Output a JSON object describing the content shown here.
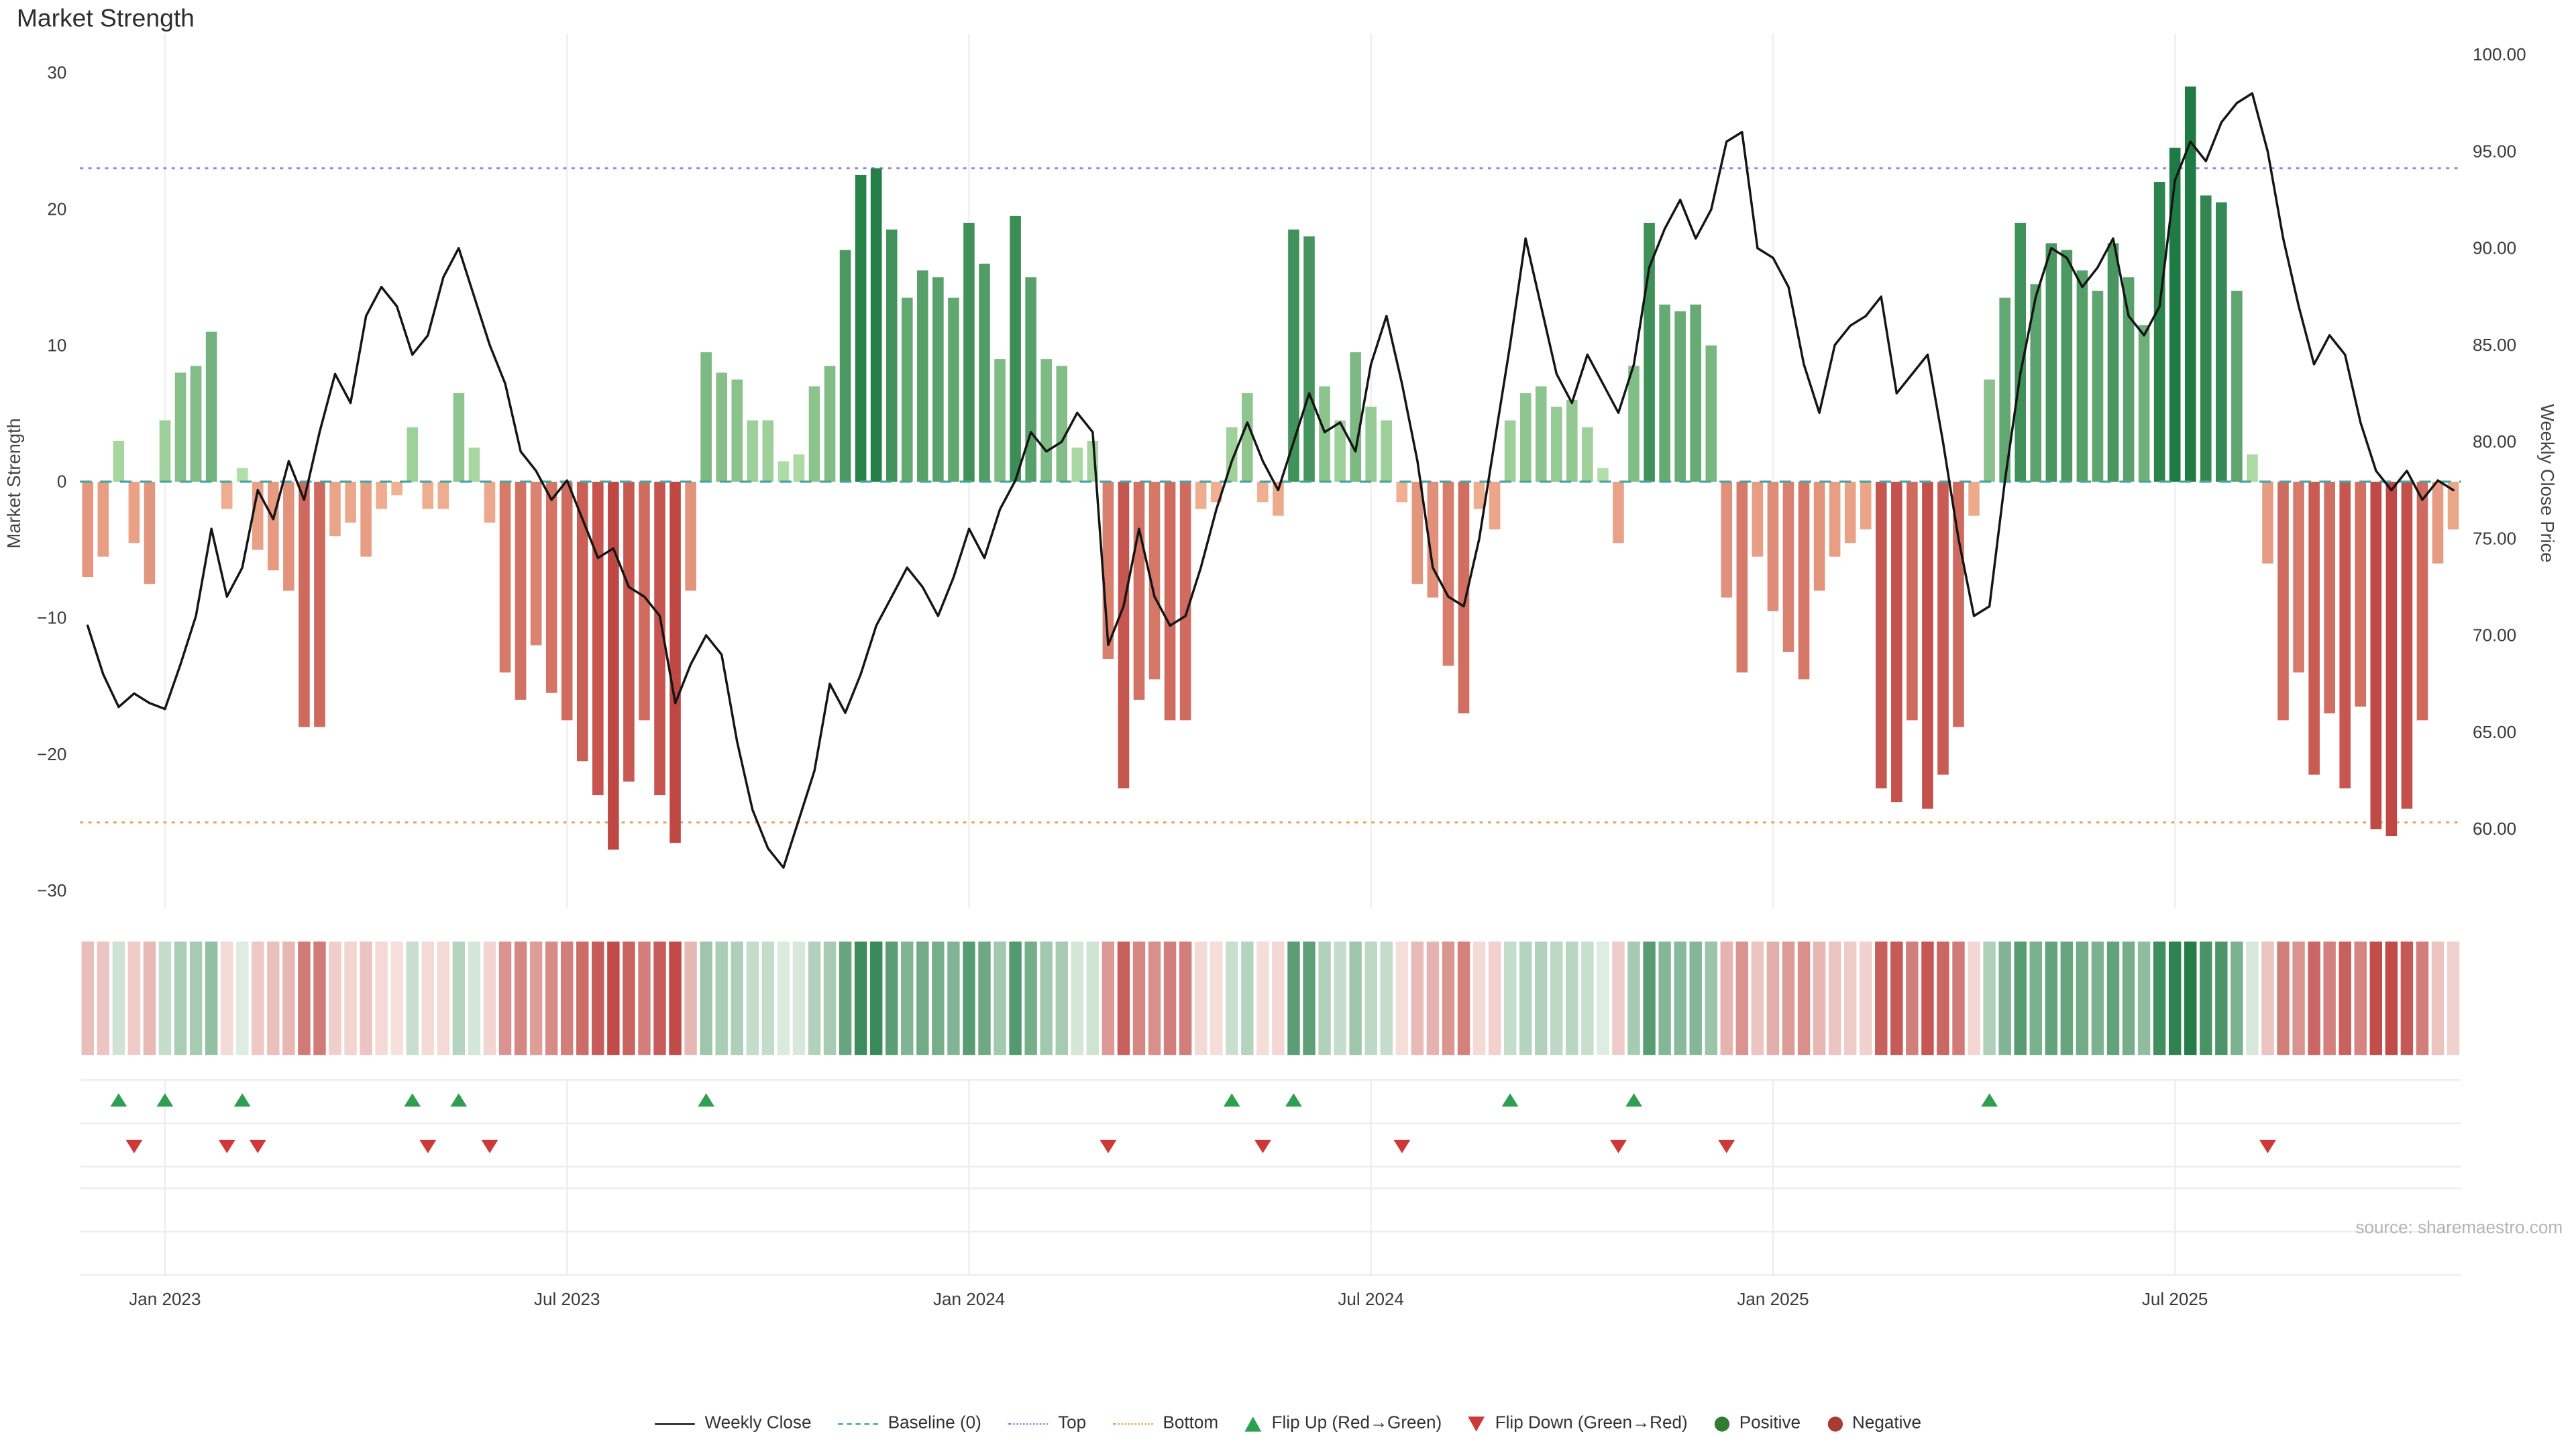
{
  "chart_data": {
    "type": "combo",
    "title": "Market Strength",
    "x_tick_labels": [
      "Jan 2023",
      "Jul 2023",
      "Jan 2024",
      "Jul 2024",
      "Jan 2025",
      "Jul 2025"
    ],
    "x_tick_indices": [
      5,
      31,
      57,
      83,
      109,
      135
    ],
    "start_date": "2022-11-28",
    "frequency": "weekly",
    "left_axis": {
      "label": "Market Strength",
      "ticks": [
        30,
        20,
        10,
        0,
        -10,
        -20,
        -30
      ],
      "range": [
        -31.3,
        32.9
      ]
    },
    "right_axis": {
      "label": "Weekly Close Price",
      "ticks": [
        100,
        95,
        90,
        85,
        80,
        75,
        70,
        65,
        60
      ],
      "range": [
        55.9,
        101.1
      ]
    },
    "reference_lines": {
      "baseline": 0,
      "top": 23,
      "bottom": -25
    },
    "series": [
      {
        "name": "Market Strength",
        "type": "bar",
        "axis": "left",
        "values": [
          -7,
          -5.5,
          3,
          -4.5,
          -7.5,
          4.5,
          8,
          8.5,
          11,
          -2,
          1,
          -5,
          -6.5,
          -8,
          -18,
          -18,
          -4,
          -3,
          -5.5,
          -2,
          -1,
          4,
          -2,
          -2,
          6.5,
          2.5,
          -3,
          -14,
          -16,
          -12,
          -15.5,
          -17.5,
          -20.5,
          -23,
          -27,
          -22,
          -17.5,
          -23,
          -26.5,
          -8,
          9.5,
          8,
          7.5,
          4.5,
          4.5,
          1.5,
          2,
          7,
          8.5,
          17,
          22.5,
          23,
          18.5,
          13.5,
          15.5,
          15,
          13.5,
          19,
          16,
          9,
          19.5,
          15,
          9,
          8.5,
          2.5,
          3,
          -13,
          -22.5,
          -16,
          -14.5,
          -17.5,
          -17.5,
          -2,
          -1.5,
          4,
          6.5,
          -1.5,
          -2.5,
          18.5,
          18,
          7,
          4.5,
          9.5,
          5.5,
          4.5,
          -1.5,
          -7.5,
          -8.5,
          -13.5,
          -17,
          -2,
          -3.5,
          4.5,
          6.5,
          7,
          5.5,
          6,
          4,
          1,
          -4.5,
          8.5,
          19,
          13,
          12.5,
          13,
          10,
          -8.5,
          -14,
          -5.5,
          -9.5,
          -12.5,
          -14.5,
          -8,
          -5.5,
          -4.5,
          -3.5,
          -22.5,
          -23.5,
          -17.5,
          -24,
          -21.5,
          -18,
          -2.5,
          7.5,
          13.5,
          19,
          14.5,
          17.5,
          17,
          15.5,
          14,
          17.5,
          15,
          11.5,
          22,
          24.5,
          29,
          21,
          20.5,
          14,
          2,
          -6,
          -17.5,
          -14,
          -21.5,
          -17,
          -22.5,
          -16.5,
          -25.5,
          -26,
          -24,
          -17.5,
          -6,
          -3.5
        ]
      },
      {
        "name": "Weekly Close",
        "type": "line",
        "axis": "right",
        "values": [
          70.5,
          68.0,
          66.3,
          67.0,
          66.5,
          66.2,
          68.5,
          71.0,
          75.5,
          72.0,
          73.5,
          77.5,
          76.0,
          79.0,
          77.0,
          80.5,
          83.5,
          82.0,
          86.5,
          88.0,
          87.0,
          84.5,
          85.5,
          88.5,
          90.0,
          87.5,
          85.0,
          83.0,
          79.5,
          78.5,
          77.0,
          78.0,
          76.0,
          74.0,
          74.5,
          72.5,
          72.0,
          71.0,
          66.5,
          68.5,
          70.0,
          69.0,
          64.5,
          61.0,
          59.0,
          58.0,
          60.5,
          63.0,
          67.5,
          66.0,
          68.0,
          70.5,
          72.0,
          73.5,
          72.5,
          71.0,
          73.0,
          75.5,
          74.0,
          76.5,
          78.0,
          80.5,
          79.5,
          80.0,
          81.5,
          80.5,
          69.5,
          71.5,
          75.5,
          72.0,
          70.5,
          71.0,
          73.5,
          76.5,
          79.0,
          81.0,
          79.0,
          77.5,
          80.0,
          82.5,
          80.5,
          81.0,
          79.5,
          84.0,
          86.5,
          83.0,
          79.0,
          73.5,
          72.0,
          71.5,
          75.0,
          80.0,
          85.0,
          90.5,
          87.0,
          83.5,
          82.0,
          84.5,
          83.0,
          81.5,
          84.0,
          89.0,
          91.0,
          92.5,
          90.5,
          92.0,
          95.5,
          96.0,
          90.0,
          89.5,
          88.0,
          84.0,
          81.5,
          85.0,
          86.0,
          86.5,
          87.5,
          82.5,
          83.5,
          84.5,
          80.0,
          75.0,
          71.0,
          71.5,
          78.0,
          83.5,
          87.5,
          90.0,
          89.5,
          88.0,
          89.0,
          90.5,
          86.5,
          85.5,
          87.0,
          93.5,
          95.5,
          94.5,
          96.5,
          97.5,
          98.0,
          95.0,
          90.5,
          87.0,
          84.0,
          85.5,
          84.5,
          81.0,
          78.5,
          77.5,
          78.5,
          77.0,
          78.0,
          77.5
        ]
      }
    ],
    "heatmap_strip": "same values as Market Strength bars, rendered as a color band",
    "flip_markers": "flip-up marker where bar sign changes red to green; flip-down marker where bar sign changes green to red"
  },
  "colors": {
    "positive_dark": "#1f7a43",
    "positive_light": "#b9e2ad",
    "negative_dark": "#bf4845",
    "negative_light": "#f2b595",
    "line": "#151515",
    "baseline": "#46a5a0",
    "top_line": "#8d8ddb",
    "bottom_line": "#e9a45b",
    "flip_up": "#2e9e50",
    "flip_down": "#cf3838",
    "grid": "#efefef"
  },
  "source": {
    "text": "source: sharemaestro.com"
  },
  "legend": {
    "items": [
      {
        "label": "Weekly Close",
        "symbol": "black-line"
      },
      {
        "label": "Baseline (0)",
        "symbol": "teal-dashed-line"
      },
      {
        "label": "Top",
        "symbol": "purple-dotted-line"
      },
      {
        "label": "Bottom",
        "symbol": "orange-dotted-line"
      },
      {
        "label": "Flip Up (Red→Green)",
        "symbol": "green-up-triangle"
      },
      {
        "label": "Flip Down (Green→Red)",
        "symbol": "red-down-triangle"
      },
      {
        "label": "Positive",
        "symbol": "green-dot"
      },
      {
        "label": "Negative",
        "symbol": "red-dot"
      }
    ]
  }
}
